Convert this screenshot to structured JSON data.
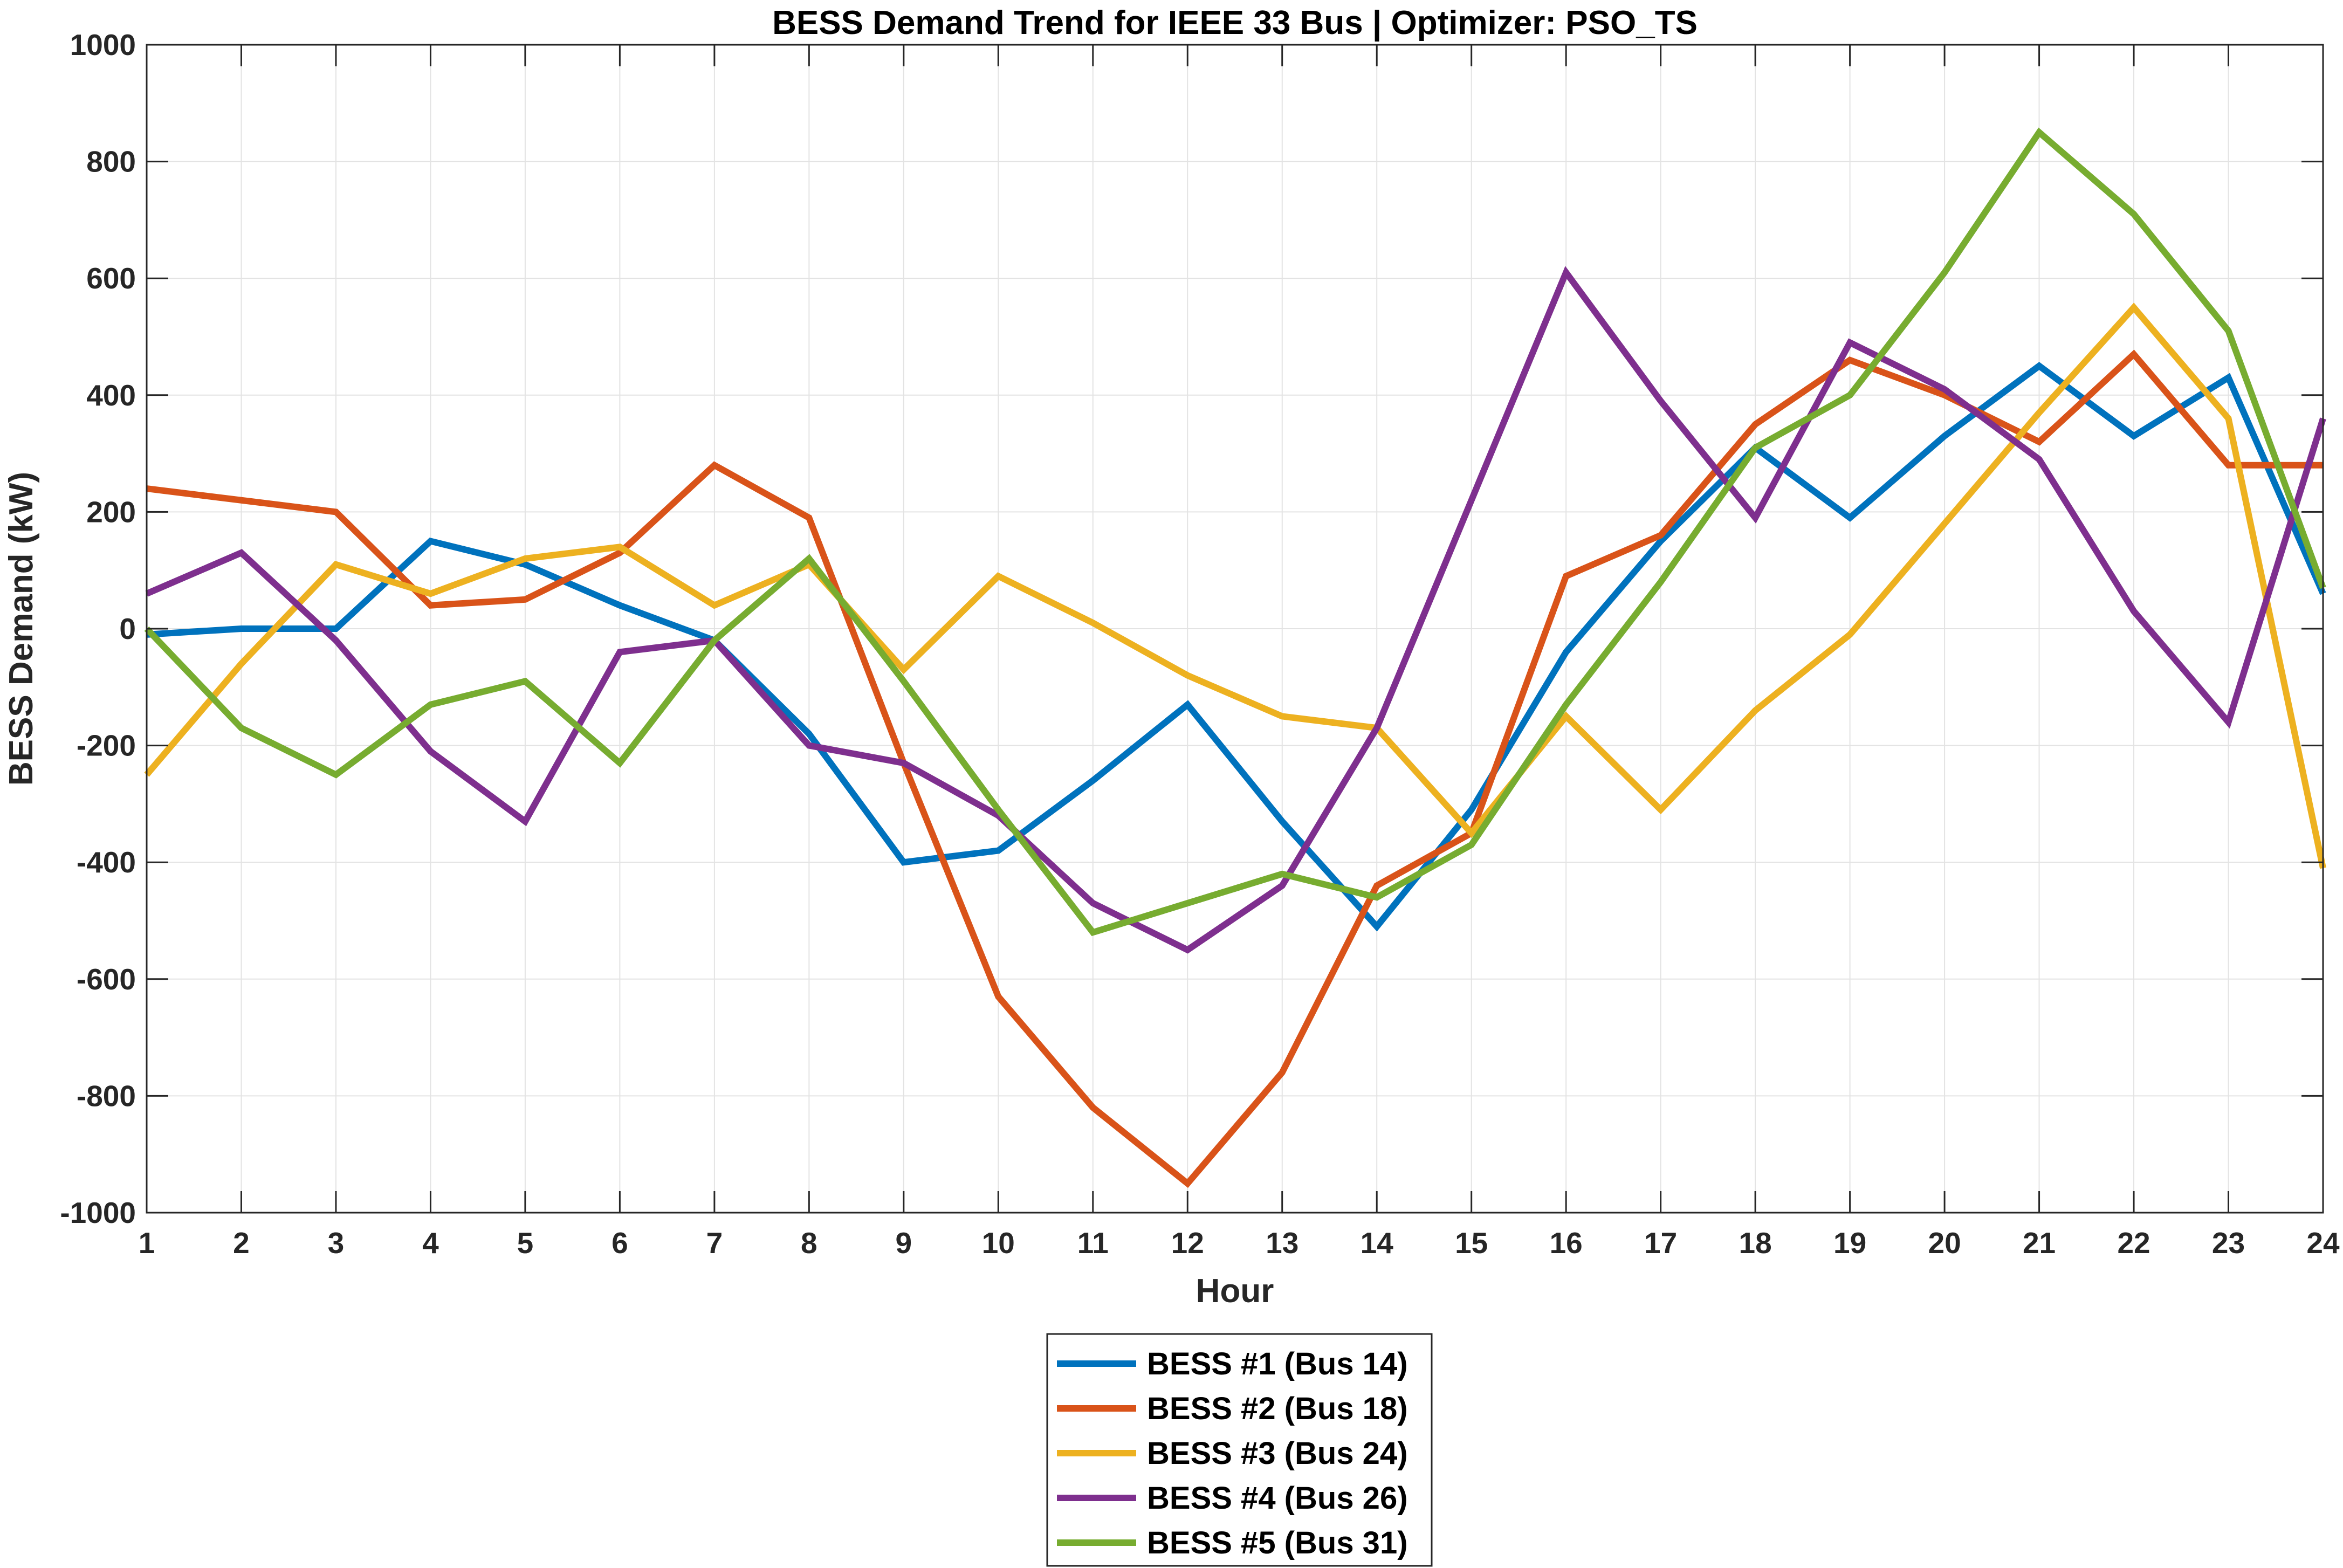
{
  "chart_data": {
    "type": "line",
    "title": "BESS Demand Trend for IEEE 33 Bus | Optimizer: PSO_TS",
    "xlabel": "Hour",
    "ylabel": "BESS Demand (kW)",
    "x": [
      1,
      2,
      3,
      4,
      5,
      6,
      7,
      8,
      9,
      10,
      11,
      12,
      13,
      14,
      15,
      16,
      17,
      18,
      19,
      20,
      21,
      22,
      23,
      24
    ],
    "xlim": [
      1,
      24
    ],
    "ylim": [
      -1000,
      1000
    ],
    "xticks": [
      "1",
      "2",
      "3",
      "4",
      "5",
      "6",
      "7",
      "8",
      "9",
      "10",
      "11",
      "12",
      "13",
      "14",
      "15",
      "16",
      "17",
      "18",
      "19",
      "20",
      "21",
      "22",
      "23",
      "24"
    ],
    "yticks": [
      "-1000",
      "-800",
      "-600",
      "-400",
      "-200",
      "0",
      "200",
      "400",
      "600",
      "800",
      "1000"
    ],
    "ytick_values": [
      -1000,
      -800,
      -600,
      -400,
      -200,
      0,
      200,
      400,
      600,
      800,
      1000
    ],
    "grid": true,
    "legend_position": "bottom-center",
    "series": [
      {
        "name": "BESS #1 (Bus 14)",
        "color": "#0072BD",
        "values": [
          -10,
          0,
          0,
          150,
          110,
          40,
          -20,
          -180,
          -400,
          -380,
          -260,
          -130,
          -330,
          -510,
          -310,
          -40,
          150,
          310,
          190,
          330,
          450,
          330,
          430,
          60
        ]
      },
      {
        "name": "BESS #2 (Bus 18)",
        "color": "#D95319",
        "values": [
          240,
          220,
          200,
          40,
          50,
          130,
          280,
          190,
          -230,
          -630,
          -820,
          -950,
          -760,
          -440,
          -350,
          90,
          160,
          350,
          460,
          400,
          320,
          470,
          280,
          280
        ]
      },
      {
        "name": "BESS #3 (Bus 24)",
        "color": "#EDB120",
        "values": [
          -250,
          -60,
          110,
          60,
          120,
          140,
          40,
          110,
          -70,
          90,
          10,
          -80,
          -150,
          -170,
          -350,
          -150,
          -310,
          -140,
          -10,
          180,
          370,
          550,
          360,
          -410
        ]
      },
      {
        "name": "BESS #4 (Bus 26)",
        "color": "#7E2F8E",
        "values": [
          60,
          130,
          -20,
          -210,
          -330,
          -40,
          -20,
          -200,
          -230,
          -320,
          -470,
          -550,
          -440,
          -170,
          220,
          610,
          390,
          190,
          490,
          410,
          290,
          30,
          -160,
          360
        ]
      },
      {
        "name": "BESS #5 (Bus 31)",
        "color": "#77AC30",
        "values": [
          0,
          -170,
          -250,
          -130,
          -90,
          -230,
          -20,
          120,
          -90,
          -310,
          -520,
          -470,
          -420,
          -460,
          -370,
          -130,
          80,
          310,
          400,
          610,
          850,
          710,
          510,
          70
        ]
      }
    ]
  }
}
